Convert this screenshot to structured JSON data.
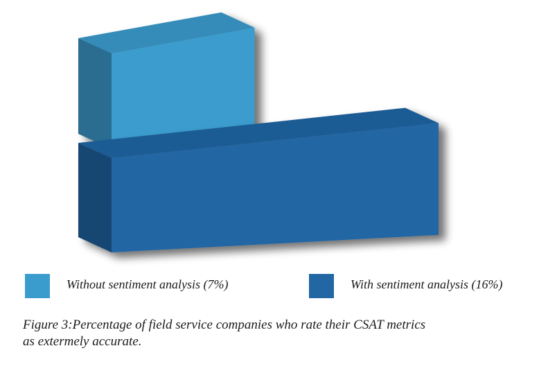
{
  "chart_data": {
    "type": "bar",
    "categories": [
      "Without sentiment analysis",
      "With sentiment analysis"
    ],
    "values": [
      7,
      16
    ],
    "unit": "%",
    "colors": [
      "#3a9ccd",
      "#2266a4"
    ],
    "legend": [
      {
        "label": "Without sentiment analysis (7%)",
        "color": "#3a9ccd"
      },
      {
        "label": "With sentiment analysis (16%)",
        "color": "#2266a4"
      }
    ],
    "legend_placement": "bottom",
    "grid": false,
    "style": "3d"
  },
  "caption": {
    "line1": "Figure 3:Percentage of field service companies who rate their CSAT metrics",
    "line2": "as extermely accurate."
  }
}
